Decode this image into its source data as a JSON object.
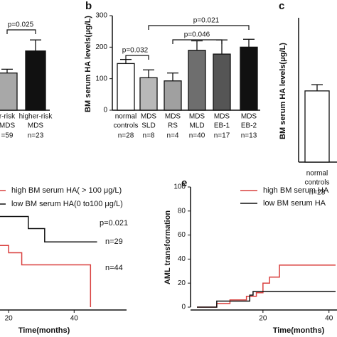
{
  "chart_data": [
    {
      "type": "bar",
      "categories": [
        "r-risk",
        "higher-risk"
      ],
      "category_sub": [
        "MDS",
        "MDS"
      ],
      "n_labels": [
        "=59",
        "n=23"
      ],
      "values": [
        118,
        188
      ],
      "errors": [
        12,
        35
      ],
      "colors": [
        "#a8a8a8",
        "#111111"
      ],
      "ylim": [
        0,
        300
      ],
      "annotations": [
        "p=0.025"
      ]
    },
    {
      "type": "bar",
      "title": "b",
      "ylabel": "BM serum HA levels(μg/L)",
      "categories": [
        "normal",
        "MDS",
        "MDS",
        "MDS",
        "MDS",
        "MDS"
      ],
      "category_sub": [
        "controls",
        "SLD",
        "RS",
        "MLD",
        "EB-1",
        "EB-2"
      ],
      "n_labels": [
        "n=28",
        "n=8",
        "n=4",
        "n=40",
        "n=17",
        "n=13"
      ],
      "values": [
        148,
        103,
        93,
        190,
        178,
        200
      ],
      "errors": [
        13,
        25,
        25,
        30,
        45,
        25
      ],
      "colors": [
        "#ffffff",
        "#b8b8b8",
        "#a0a0a0",
        "#6e6e6e",
        "#555555",
        "#111111"
      ],
      "ylim": [
        0,
        300
      ],
      "yticks": [
        0,
        100,
        200,
        300
      ],
      "annotations": [
        "p=0.032",
        "p=0.021",
        "p=0.046"
      ]
    },
    {
      "type": "bar",
      "title": "c",
      "ylabel": "BM serum HA levels(μg/L)",
      "categories": [
        "normal"
      ],
      "category_sub": [
        "controls"
      ],
      "n_labels": [
        "n=28"
      ],
      "values": [
        148
      ],
      "errors": [
        13
      ],
      "colors": [
        "#ffffff"
      ],
      "ylim": [
        0,
        300
      ]
    },
    {
      "type": "line",
      "xlabel": "Time(months)",
      "xlim": [
        0,
        56
      ],
      "ylim": [
        0,
        100
      ],
      "xticks": [
        20,
        40
      ],
      "series": [
        {
          "name": "high BM serum HA( > 100 μg/L)",
          "color": "#d9403f",
          "x": [
            0,
            12,
            12,
            17,
            17,
            20,
            20,
            24,
            24,
            45,
            45
          ],
          "values": [
            70,
            70,
            58,
            58,
            51,
            51,
            45,
            45,
            35,
            35,
            0
          ]
        },
        {
          "name": "low BM serum HA(0 to100 μg/L)",
          "color": "#111111",
          "x": [
            0,
            26,
            26,
            31,
            31,
            47
          ],
          "values": [
            75,
            75,
            65,
            65,
            54,
            54
          ]
        }
      ],
      "annotations": [
        "p=0.021",
        "n=29",
        "n=44"
      ]
    },
    {
      "type": "line",
      "title": "e",
      "ylabel": "AML transformation",
      "xlabel": "Time(months)",
      "xlim": [
        0,
        42
      ],
      "ylim": [
        0,
        100
      ],
      "xticks": [
        20,
        40
      ],
      "yticks": [
        0,
        20,
        40,
        60,
        80,
        100
      ],
      "series": [
        {
          "name": "high BM serum HA",
          "color": "#d9403f",
          "x": [
            0,
            6,
            6,
            10,
            10,
            15,
            15,
            18,
            18,
            20,
            20,
            22,
            22,
            25,
            25,
            42
          ],
          "values": [
            0,
            0,
            3,
            3,
            6,
            6,
            9,
            9,
            12,
            12,
            20,
            20,
            25,
            25,
            35,
            35
          ]
        },
        {
          "name": "low BM serum HA",
          "color": "#111111",
          "x": [
            0,
            6,
            6,
            16,
            16,
            17,
            17,
            42
          ],
          "values": [
            0,
            0,
            5,
            5,
            10,
            10,
            13,
            13
          ]
        }
      ]
    }
  ]
}
